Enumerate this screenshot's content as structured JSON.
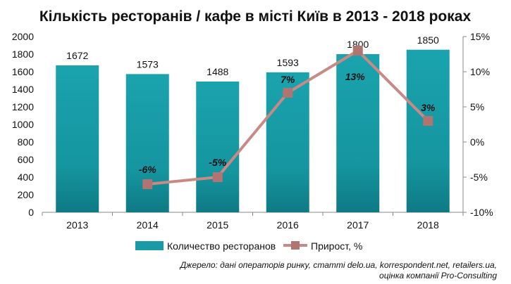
{
  "chart_data": {
    "type": "bar",
    "title": "Кількість ресторанів / кафе в місті Київ в 2013 - 2018 роках",
    "categories": [
      "2013",
      "2014",
      "2015",
      "2016",
      "2017",
      "2018"
    ],
    "series": [
      {
        "name": "Количество ресторанов",
        "type": "bar",
        "axis": "left",
        "color": "#1a9aa6",
        "values": [
          1672,
          1573,
          1488,
          1593,
          1800,
          1850
        ],
        "labels": [
          "1672",
          "1573",
          "1488",
          "1593",
          "1800",
          "1850"
        ]
      },
      {
        "name": "Прирост, %",
        "type": "line",
        "axis": "right",
        "color": "#c88a85",
        "marker_color": "#b07570",
        "values": [
          null,
          -6,
          -5,
          7,
          13,
          3
        ],
        "labels": [
          "",
          "-6%",
          "-5%",
          "7%",
          "13%",
          "3%"
        ]
      }
    ],
    "y_left": {
      "min": 0,
      "max": 2000,
      "step": 200,
      "ticks": [
        "0",
        "200",
        "400",
        "600",
        "800",
        "1000",
        "1200",
        "1400",
        "1600",
        "1800",
        "2000"
      ]
    },
    "y_right": {
      "min": -10,
      "max": 15,
      "step": 5,
      "ticks": [
        "-10%",
        "-5%",
        "0%",
        "5%",
        "10%",
        "15%"
      ]
    },
    "legend": {
      "placement": "bottom"
    },
    "grid": false
  },
  "source": {
    "line1": "Джерело: дані операторів ринку, статті delo.ua, korrespondent.net, retailers.ua,",
    "line2": "оцінка компанії Pro-Consulting"
  }
}
